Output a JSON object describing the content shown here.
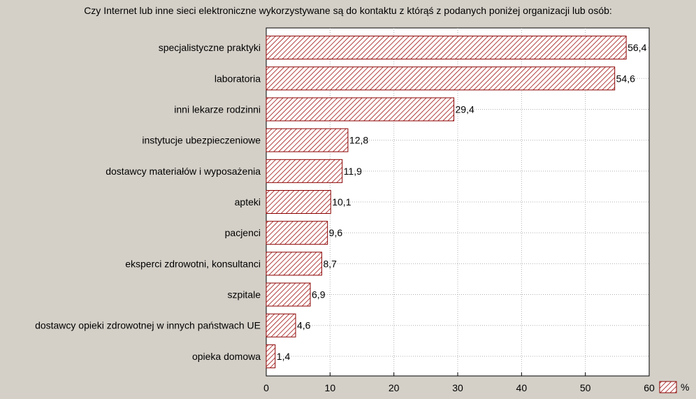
{
  "chart_data": {
    "type": "bar",
    "orientation": "horizontal",
    "title": "Czy Internet lub inne sieci elektroniczne wykorzystywane są do kontaktu z którąś z podanych poniżej organizacji lub osób:",
    "categories": [
      "specjalistyczne praktyki",
      "laboratoria",
      "inni lekarze rodzinni",
      "instytucje ubezpieczeniowe",
      "dostawcy materiałów i wyposażenia",
      "apteki",
      "pacjenci",
      "eksperci zdrowotni, konsultanci",
      "szpitale",
      "dostawcy opieki zdrowotnej w innych państwach UE",
      "opieka domowa"
    ],
    "values": [
      56.4,
      54.6,
      29.4,
      12.8,
      11.9,
      10.1,
      9.6,
      8.7,
      6.9,
      4.6,
      1.4
    ],
    "value_labels": [
      "56,4",
      "54,6",
      "29,4",
      "12,8",
      "11,9",
      "10,1",
      "9,6",
      "8,7",
      "6,9",
      "4,6",
      "1,4"
    ],
    "xlim": [
      0,
      60
    ],
    "xticks": [
      0,
      10,
      20,
      30,
      40,
      50,
      60
    ],
    "grid": true,
    "legend": {
      "entries": [
        "%"
      ],
      "position": "bottom-right"
    },
    "colors": {
      "bar_stroke": "#8b0000",
      "hatch": "#a01010",
      "bar_fill": "#ffffff",
      "background": "#d4d0c8",
      "grid": "#b0b0b0"
    }
  }
}
